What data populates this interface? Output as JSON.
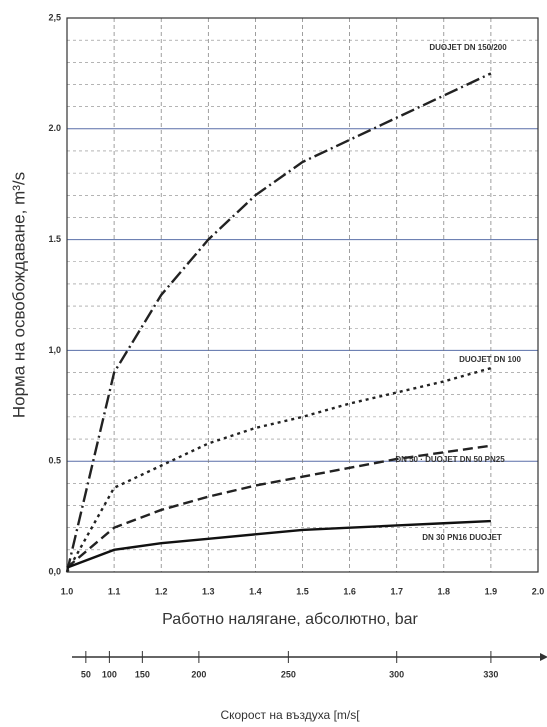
{
  "chart_data": {
    "type": "line",
    "x_label": "Работно налягане, абсолютно, bar",
    "y_label": "Норма на освобождаване, m³/s",
    "xlim": [
      1,
      2
    ],
    "xticks": [
      {
        "value": 1,
        "label": "1.0"
      },
      1.1,
      1.2,
      1.3,
      1.4,
      1.5,
      1.6,
      1.7,
      1.8,
      1.9,
      {
        "value": 2,
        "label": "2.0"
      }
    ],
    "ylim": [
      0,
      2.5
    ],
    "yticks": [
      {
        "value": 0,
        "label": "0,0"
      },
      0.5,
      {
        "value": 1,
        "label": "1,0"
      },
      1.5,
      {
        "value": 2,
        "label": "2.0"
      },
      {
        "value": 2.5,
        "label": "2,5"
      }
    ],
    "grid": true,
    "x": [
      1,
      1.1,
      1.2,
      1.3,
      1.4,
      1.5,
      1.6,
      1.7,
      1.8,
      1.9
    ],
    "series": [
      {
        "name": "DUOJET DN 150/200",
        "color": "#222222",
        "dash": "14 4 2 4",
        "values": [
          0,
          0.9,
          1.25,
          1.5,
          1.7,
          1.85,
          1.95,
          2.05,
          2.15,
          2.25
        ]
      },
      {
        "name": "DUOJET DN 100",
        "color": "#222222",
        "dash": "3 4",
        "values": [
          0,
          0.38,
          0.48,
          0.58,
          0.65,
          0.7,
          0.76,
          0.81,
          0.86,
          0.92
        ]
      },
      {
        "name": "DN 50 · DUOJET DN 50 PN25",
        "color": "#222222",
        "dash": "10 5",
        "values": [
          0.02,
          0.2,
          0.28,
          0.34,
          0.39,
          0.43,
          0.47,
          0.51,
          0.54,
          0.57
        ]
      },
      {
        "name": "DN 30 PN16 DUOJET",
        "color": "#111111",
        "dash": "",
        "values": [
          0.02,
          0.1,
          0.13,
          0.15,
          0.17,
          0.19,
          0.2,
          0.21,
          0.22,
          0.23
        ]
      }
    ],
    "speed_axis": {
      "label": "Скорост на въздуха [m/s[",
      "ticks": [
        50,
        100,
        150,
        200,
        250,
        300,
        330
      ],
      "ticks_at_x": [
        1.04,
        1.09,
        1.16,
        1.28,
        1.47,
        1.7,
        1.9
      ]
    }
  }
}
